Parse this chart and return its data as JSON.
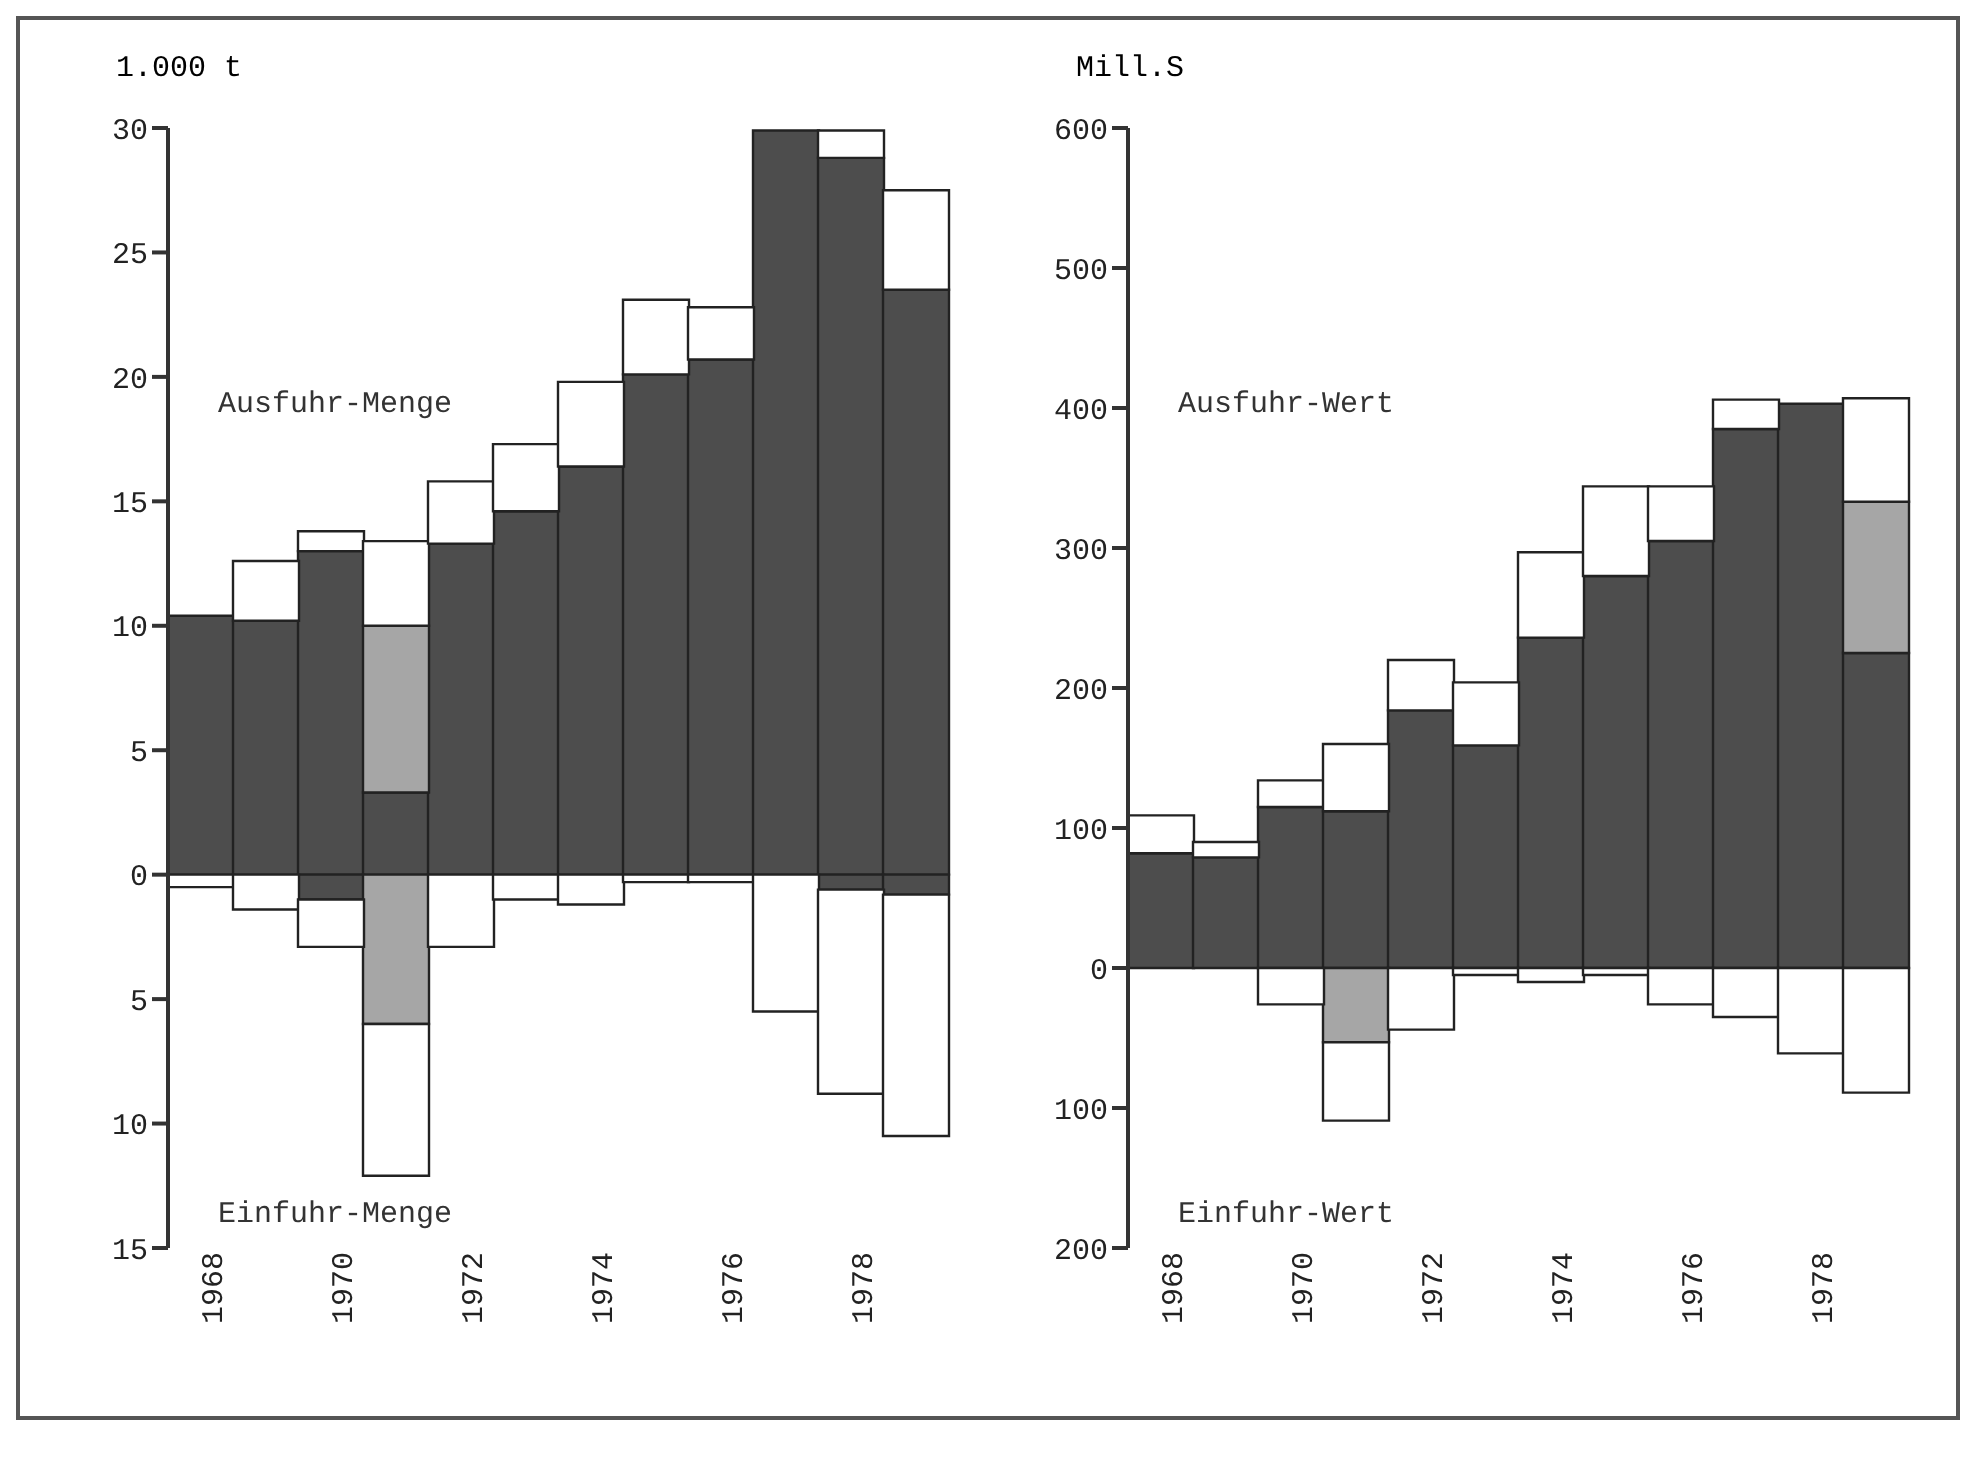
{
  "chart_data": [
    {
      "type": "bar",
      "stacked": true,
      "ylabel": "1.000 t",
      "annotations": [
        "Ausfuhr-Menge",
        "Einfuhr-Menge"
      ],
      "categories": [
        "1968",
        null,
        "1970",
        null,
        "1972",
        null,
        "1974",
        null,
        "1976",
        null,
        "1978",
        null
      ],
      "series": [
        {
          "color": "#4d4d4d",
          "values": [
            10.4,
            10.2,
            13.0,
            3.3,
            13.3,
            14.6,
            16.4,
            20.1,
            20.7,
            29.9,
            28.8,
            23.5
          ]
        },
        {
          "color": "#a6a6a6",
          "values": [
            null,
            null,
            null,
            6.7,
            null,
            null,
            null,
            null,
            null,
            null,
            null,
            null
          ]
        },
        {
          "color": "#ffffff",
          "values": [
            null,
            2.4,
            0.8,
            3.4,
            2.5,
            2.7,
            3.4,
            3.0,
            2.1,
            null,
            1.1,
            4.0
          ]
        },
        {
          "color": "#4d4d4d",
          "values": [
            null,
            null,
            -1.0,
            null,
            null,
            null,
            null,
            null,
            null,
            null,
            -0.6,
            -0.8
          ]
        },
        {
          "color": "#a6a6a6",
          "values": [
            null,
            null,
            null,
            -6.0,
            null,
            null,
            null,
            null,
            null,
            null,
            null,
            null
          ]
        },
        {
          "color": "#ffffff",
          "values": [
            -0.5,
            -1.4,
            -1.9,
            -6.1,
            -2.9,
            -1.0,
            -1.2,
            -0.3,
            -0.3,
            -5.5,
            -8.2,
            -9.7
          ]
        }
      ],
      "ylim": [
        -15,
        30
      ],
      "yticks": [
        30,
        25,
        20,
        15,
        10,
        5,
        0,
        {
          "value": -5,
          "label": "5"
        },
        {
          "value": -10,
          "label": "10"
        },
        {
          "value": -15,
          "label": "15"
        }
      ]
    },
    {
      "type": "bar",
      "stacked": true,
      "ylabel": "Mill.S",
      "annotations": [
        "Ausfuhr-Wert",
        "Einfuhr-Wert"
      ],
      "categories": [
        "1968",
        null,
        "1970",
        null,
        "1972",
        null,
        "1974",
        null,
        "1976",
        null,
        "1978",
        null
      ],
      "series": [
        {
          "color": "#4d4d4d",
          "values": [
            82,
            79,
            115,
            112,
            184,
            159,
            236,
            280,
            305,
            385,
            403,
            225
          ]
        },
        {
          "color": "#a6a6a6",
          "values": [
            null,
            null,
            null,
            null,
            null,
            null,
            null,
            null,
            null,
            null,
            null,
            108
          ]
        },
        {
          "color": "#ffffff",
          "values": [
            27,
            11,
            19,
            48,
            36,
            45,
            61,
            64,
            39,
            21,
            null,
            74
          ]
        },
        {
          "color": "#4d4d4d",
          "values": [
            null,
            null,
            null,
            null,
            null,
            null,
            null,
            null,
            null,
            null,
            null,
            null
          ]
        },
        {
          "color": "#a6a6a6",
          "values": [
            null,
            null,
            null,
            -53,
            null,
            null,
            null,
            null,
            null,
            null,
            null,
            null
          ]
        },
        {
          "color": "#ffffff",
          "values": [
            null,
            null,
            -26,
            -56,
            -44,
            -5,
            -10,
            -5,
            -26,
            -35,
            -61,
            -89
          ]
        }
      ],
      "ylim": [
        -200,
        600
      ],
      "yticks": [
        600,
        500,
        400,
        300,
        200,
        100,
        0,
        {
          "value": -100,
          "label": "100"
        },
        {
          "value": -200,
          "label": "200"
        }
      ]
    }
  ]
}
